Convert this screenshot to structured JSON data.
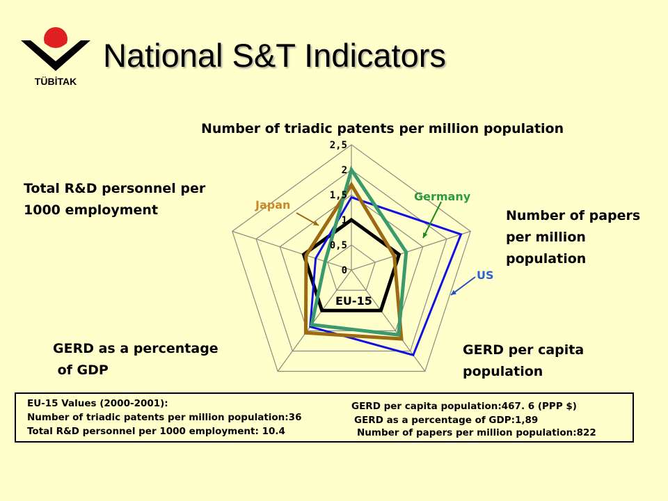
{
  "logo": {
    "text": "TÜBİTAK",
    "colors": {
      "circle": "#e02020",
      "chevron": "#000000"
    }
  },
  "title": "National S&T Indicators",
  "axis_labels": {
    "top": "Number of triadic patents per million population",
    "right": "Number of papers\nper million\npopulation",
    "bottom_right": "GERD per capita\npopulation",
    "bottom_left": "GERD as a percentage\n of GDP",
    "left": "Total R&D personnel per\n1000 employment"
  },
  "chart_data": {
    "type": "radar",
    "axes": [
      "Number of triadic patents per million population",
      "Number of papers per million population",
      "GERD per capita population",
      "GERD as a percentage of GDP",
      "Total R&D personnel per 1000 employment"
    ],
    "rlim": [
      0,
      2.5
    ],
    "ticks": [
      "0",
      "0,5",
      "1",
      "1,5",
      "2",
      "2,5"
    ],
    "tick_values": [
      0,
      0.5,
      1,
      1.5,
      2,
      2.5
    ],
    "series": [
      {
        "name": "EU-15",
        "color": "#000000",
        "values": [
          1,
          1,
          1,
          1,
          1
        ]
      },
      {
        "name": "US",
        "color": "#1010e0",
        "values": [
          1.45,
          2.3,
          2.1,
          1.4,
          0.75
        ]
      },
      {
        "name": "Japan",
        "color": "#9b6a12",
        "values": [
          1.7,
          0.9,
          1.7,
          1.55,
          0.95
        ]
      },
      {
        "name": "Germany",
        "color": "#3a9a6e",
        "values": [
          2.0,
          1.15,
          1.6,
          1.35,
          0.55
        ]
      }
    ]
  },
  "series_labels": {
    "eu": "EU-15",
    "us": "US",
    "japan": "Japan",
    "germany": "Germany"
  },
  "info": {
    "header": "EU-15 Values (2000-2001):",
    "patents": "Number of triadic patents per million population:36",
    "personnel": "Total R&D personnel per 1000 employment: 10.4",
    "gerd_capita": "GERD per capita population:467. 6 (PPP $)",
    "gerd_gdp": "GERD as a percentage of GDP:1,89",
    "papers": "Number of papers per million population:822"
  }
}
